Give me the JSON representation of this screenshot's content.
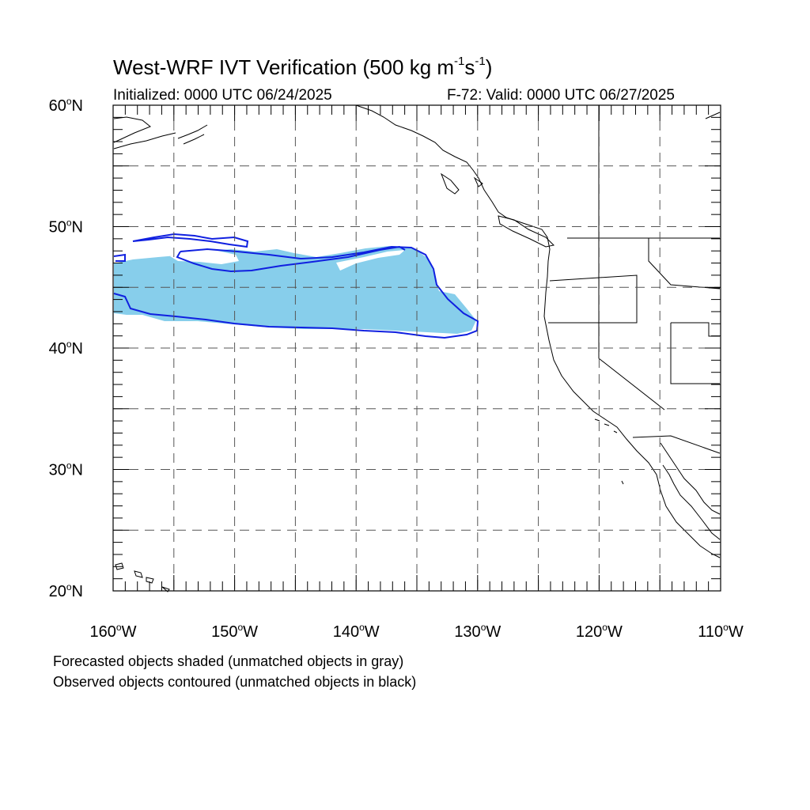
{
  "header": {
    "title_main": "West-WRF IVT Verification (500 kg m",
    "title_exp1": "-1",
    "title_s": "s",
    "title_exp2": "-1",
    "title_close": ")",
    "initialized": "Initialized: 0000 UTC 06/24/2025",
    "valid": "F-72: Valid: 0000 UTC 06/27/2025"
  },
  "notes": {
    "forecast": "Forecasted objects shaded (unmatched objects in gray)",
    "observed": "Observed objects contoured (unmatched objects in black)"
  },
  "map": {
    "lon_range": [
      -160,
      -110
    ],
    "lat_range": [
      20,
      60
    ],
    "grid_style": "dashed",
    "lat_labels": [
      {
        "lat": 60,
        "deg": "60",
        "suffix": "N"
      },
      {
        "lat": 50,
        "deg": "50",
        "suffix": "N"
      },
      {
        "lat": 40,
        "deg": "40",
        "suffix": "N"
      },
      {
        "lat": 30,
        "deg": "30",
        "suffix": "N"
      },
      {
        "lat": 20,
        "deg": "20",
        "suffix": "N"
      }
    ],
    "lon_labels": [
      {
        "lon": -160,
        "deg": "160",
        "suffix": "W"
      },
      {
        "lon": -150,
        "deg": "150",
        "suffix": "W"
      },
      {
        "lon": -140,
        "deg": "140",
        "suffix": "W"
      },
      {
        "lon": -130,
        "deg": "130",
        "suffix": "W"
      },
      {
        "lon": -120,
        "deg": "120",
        "suffix": "W"
      },
      {
        "lon": -110,
        "deg": "110",
        "suffix": "W"
      }
    ],
    "colors": {
      "forecast_fill": "#87ceeb",
      "observed_contour": "#1020e0",
      "coastline": "#000000",
      "grid": "#555555"
    }
  }
}
